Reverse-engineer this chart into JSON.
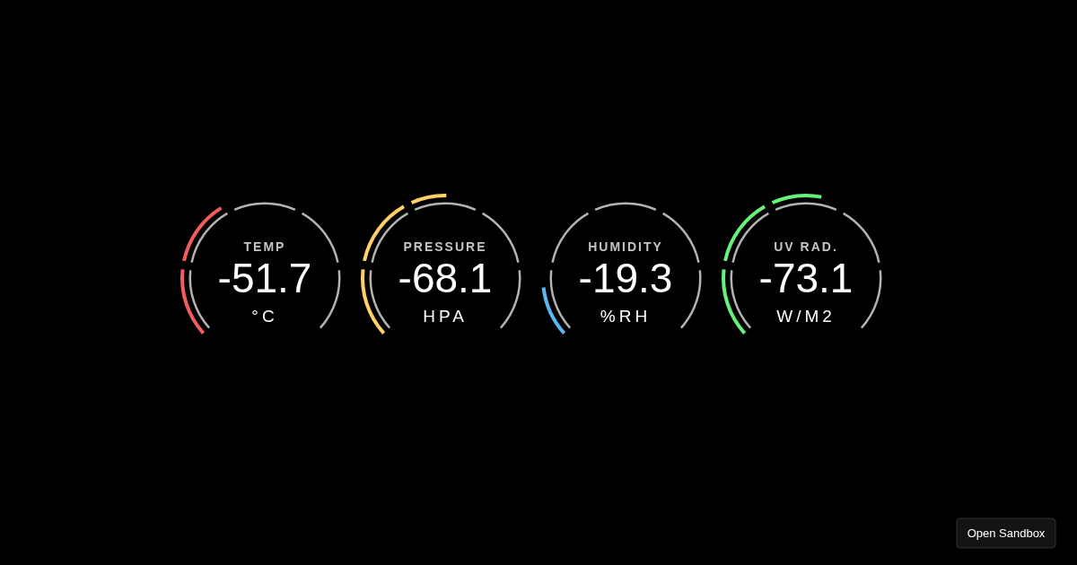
{
  "chart_data": [
    {
      "type": "other",
      "title": "TEMP",
      "values": [
        -51.7
      ],
      "data_labels": true,
      "ylabel": "°C",
      "color": "#f25c5c"
    },
    {
      "type": "other",
      "title": "PRESSURE",
      "values": [
        -68.1
      ],
      "data_labels": true,
      "ylabel": "HPA",
      "color": "#ffd166"
    },
    {
      "type": "other",
      "title": "HUMIDITY",
      "values": [
        -19.3
      ],
      "data_labels": true,
      "ylabel": "%RH",
      "color": "#5ab8f0"
    },
    {
      "type": "other",
      "title": "UV RAD.",
      "values": [
        -73.1
      ],
      "data_labels": true,
      "ylabel": "W/M2",
      "color": "#66f27a",
      "annotations": [
        "Open Sandbox"
      ]
    }
  ]
}
